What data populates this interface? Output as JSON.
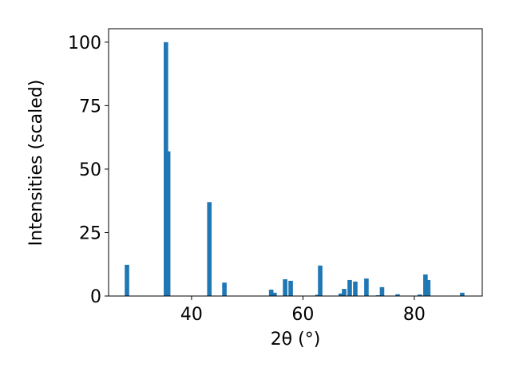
{
  "chart_data": {
    "type": "bar",
    "x_label": "2θ (°)",
    "y_label": "Intensities (scaled)",
    "x": [
      28.4,
      35.4,
      35.8,
      43.2,
      45.9,
      54.3,
      54.9,
      56.8,
      57.8,
      62.6,
      63.1,
      66.8,
      67.4,
      68.4,
      69.4,
      71.4,
      73.5,
      74.2,
      77.0,
      81.0,
      82.0,
      82.5,
      88.6
    ],
    "values": [
      12.3,
      100,
      57,
      37,
      5.3,
      2.5,
      1.3,
      6.6,
      6,
      0.5,
      12,
      1,
      2.8,
      6.3,
      5.7,
      6.9,
      0.3,
      3.5,
      0.7,
      0.6,
      8.5,
      6.3,
      1.3
    ],
    "color": "#1f77b4",
    "xlim": [
      25.1,
      92.2
    ],
    "xticks": [
      40,
      60,
      80
    ],
    "ylim": [
      0,
      105.3
    ],
    "yticks": [
      0,
      25,
      50,
      75,
      100
    ],
    "grid": false
  }
}
